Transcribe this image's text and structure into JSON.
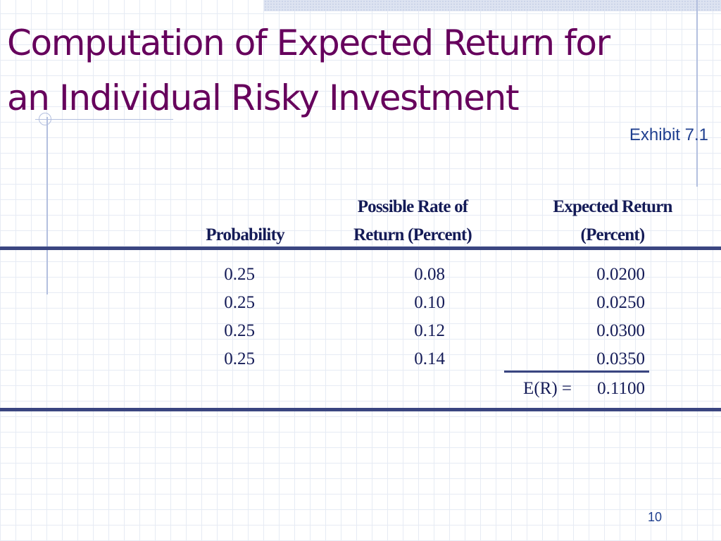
{
  "slide": {
    "title_line1": "Computation of Expected Return for",
    "title_line2": "an Individual Risky Investment",
    "exhibit": "Exhibit 7.1",
    "page_number": "10"
  },
  "table": {
    "headers": {
      "probability": "Probability",
      "rate_line1": "Possible Rate of",
      "rate_line2": "Return (Percent)",
      "expected_line1": "Expected Return",
      "expected_line2": "(Percent)"
    },
    "rows": [
      {
        "probability": "0.25",
        "rate": "0.08",
        "expected": "0.0200"
      },
      {
        "probability": "0.25",
        "rate": "0.10",
        "expected": "0.0250"
      },
      {
        "probability": "0.25",
        "rate": "0.12",
        "expected": "0.0300"
      },
      {
        "probability": "0.25",
        "rate": "0.14",
        "expected": "0.0350"
      }
    ],
    "total": {
      "label": "E(R) =",
      "value": "0.1100"
    }
  },
  "colors": {
    "title": "#66005c",
    "accent_text": "#1f3f8f",
    "table_text": "#141b57",
    "rule": "#3a4580",
    "grid": "#e6ebf4"
  }
}
